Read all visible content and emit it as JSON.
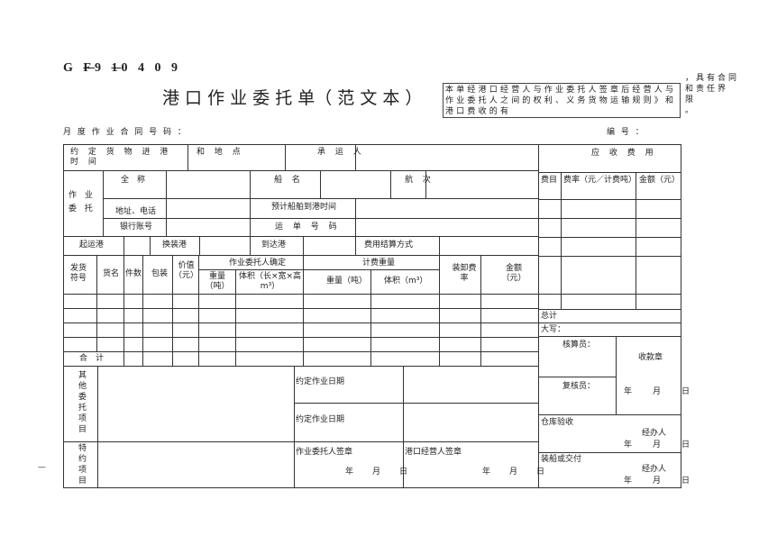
{
  "header": {
    "code_parts": [
      "G ",
      "F",
      "9 ",
      "1",
      "0 4 0 9"
    ],
    "title": "港 口 作 业 委 托 单（ 范 文 本 ）",
    "notice": "本单经港口经营人与作业委托人签章后经营人与作业委托人之间的权利、义务货物运输规则》和港口费收的有",
    "notice_side": [
      "，具有合同",
      "和责任界",
      "限",
      "。"
    ],
    "contract_no_label": "月 度 作 业 合 同 号 码 ：",
    "serial_label": "编 号 ："
  },
  "form": {
    "agreed_time": "约 定 货 物 进 港 时 间",
    "and_place": "和 地 点",
    "carrier": "承 运 人",
    "consignor": "作 业 委 托",
    "full_name": "全　称",
    "ship_name": "船 名",
    "voyage": "航 次",
    "address_phone": "地址、电话",
    "eta": "预计船舶到港时间",
    "bank_account": "银行账号",
    "waybill_no": "运 单 号 码",
    "origin_port": "起运港",
    "transship_port": "换装港",
    "dest_port": "到达港",
    "settlement": "费用结算方式",
    "cols": {
      "mark": "发货符号",
      "goods": "货名",
      "pieces": "件数",
      "package": "包装",
      "value": "价值（元）",
      "consignor_confirm": "作业委托人确定",
      "weight_t": "重量（吨）",
      "volume_lwh": "体积（长×宽×高m³）",
      "billing_weight": "计费重量",
      "bill_weight": "重量（吨）",
      "bill_volume": "体积（m³）",
      "rate": "装卸费率",
      "amount": "金额（元）"
    },
    "total": "合　计",
    "other_items": "其他委托项目",
    "special_items": "特约项目",
    "agreed_date": "约定作业日期",
    "consignor_sign": "作业委托人签章",
    "operator_sign": "港口经营人签章",
    "ymd": "年　月　日"
  },
  "fees": {
    "title": "应 收 费 用",
    "item": "费目",
    "rate": "费率（元／计费吨）",
    "amount": "金额（元）",
    "sum": "总计",
    "capital": "大写：",
    "checker": "核算员：",
    "receipt_seal": "收款章",
    "reviewer": "复核员：",
    "warehouse": "仓库验收",
    "handler": "经办人",
    "loading": "装船或交付"
  },
  "footer_mark": "—"
}
